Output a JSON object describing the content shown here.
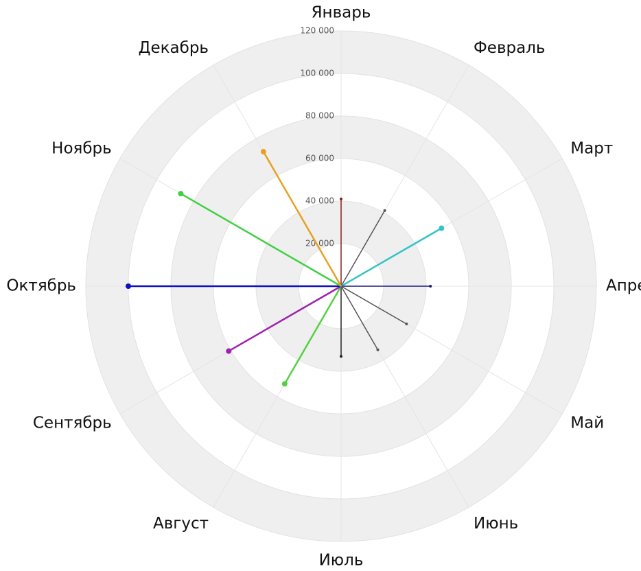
{
  "chart_data": {
    "type": "polar-line",
    "categories": [
      "Январь",
      "Февраль",
      "Март",
      "Апрель",
      "Май",
      "Июнь",
      "Июль",
      "Август",
      "Сентябрь",
      "Октябрь",
      "Ноябрь",
      "Декабрь"
    ],
    "values": [
      41000,
      41000,
      54500,
      42000,
      35500,
      34500,
      33000,
      53000,
      61000,
      100000,
      87000,
      73000
    ],
    "colors": [
      "#8b1a1a",
      "#555555",
      "#33c4c4",
      "#1a1a80",
      "#555555",
      "#555555",
      "#222222",
      "#55d040",
      "#a020b0",
      "#1010c0",
      "#40d040",
      "#e8a020"
    ],
    "ylim": [
      0,
      120000
    ],
    "yticks": [
      {
        "value": 20000,
        "label": "20 000"
      },
      {
        "value": 40000,
        "label": "40 000"
      },
      {
        "value": 60000,
        "label": "60 000"
      },
      {
        "value": 80000,
        "label": "80 000"
      },
      {
        "value": 100000,
        "label": "100 000"
      },
      {
        "value": 120000,
        "label": "120 000"
      }
    ],
    "grid": true
  }
}
